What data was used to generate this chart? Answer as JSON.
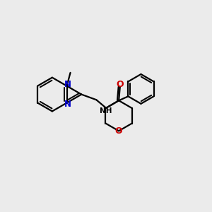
{
  "background_color": "#ebebeb",
  "bond_color": "#000000",
  "n_color": "#0000cc",
  "o_color": "#cc0000",
  "line_width": 1.6,
  "figsize": [
    3.0,
    3.0
  ],
  "dpi": 100,
  "xlim": [
    0,
    10
  ],
  "ylim": [
    0,
    10
  ]
}
